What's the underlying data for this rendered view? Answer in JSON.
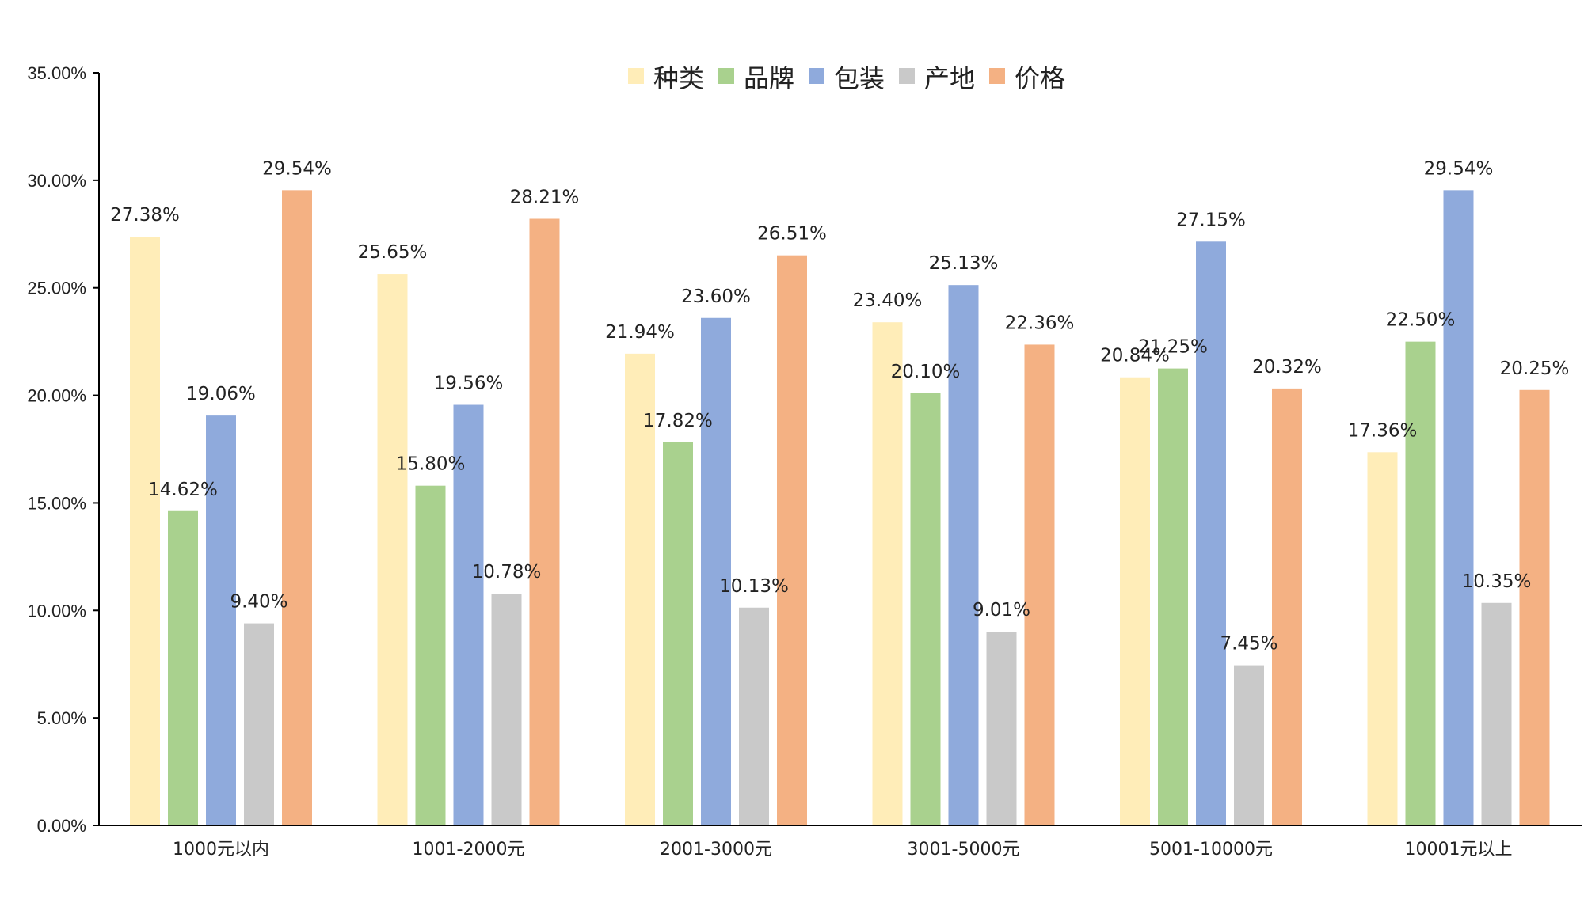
{
  "chart_data": {
    "type": "bar",
    "title": "",
    "xlabel": "",
    "ylabel": "",
    "ylim": [
      0,
      0.35
    ],
    "yticks": [
      "0.00%",
      "5.00%",
      "10.00%",
      "15.00%",
      "20.00%",
      "25.00%",
      "30.00%",
      "35.00%"
    ],
    "categories": [
      "1000元以内",
      "1001-2000元",
      "2001-3000元",
      "3001-5000元",
      "5001-10000元",
      "10001元以上"
    ],
    "legend_position": "top-center",
    "grid": false,
    "series": [
      {
        "name": "种类",
        "color": "#FFEDB8",
        "values": [
          0.2738,
          0.2565,
          0.2194,
          0.234,
          0.2084,
          0.1736
        ],
        "labels": [
          "27.38%",
          "25.65%",
          "21.94%",
          "23.40%",
          "20.84%",
          "17.36%"
        ]
      },
      {
        "name": "品牌",
        "color": "#A9D18E",
        "values": [
          0.1462,
          0.158,
          0.1782,
          0.201,
          0.2125,
          0.225
        ],
        "labels": [
          "14.62%",
          "15.80%",
          "17.82%",
          "20.10%",
          "21.25%",
          "22.50%"
        ]
      },
      {
        "name": "包装",
        "color": "#8FAADC",
        "values": [
          0.1906,
          0.1956,
          0.236,
          0.2513,
          0.2715,
          0.2954
        ],
        "labels": [
          "19.06%",
          "19.56%",
          "23.60%",
          "25.13%",
          "27.15%",
          "29.54%"
        ]
      },
      {
        "name": "产地",
        "color": "#C9C9C9",
        "values": [
          0.094,
          0.1078,
          0.1013,
          0.0901,
          0.0745,
          0.1035
        ],
        "labels": [
          "9.40%",
          "10.78%",
          "10.13%",
          "9.01%",
          "7.45%",
          "10.35%"
        ]
      },
      {
        "name": "价格",
        "color": "#F4B183",
        "values": [
          0.2954,
          0.2821,
          0.2651,
          0.2236,
          0.2032,
          0.2025
        ],
        "labels": [
          "29.54%",
          "28.21%",
          "26.51%",
          "22.36%",
          "20.32%",
          "20.25%"
        ]
      }
    ]
  }
}
